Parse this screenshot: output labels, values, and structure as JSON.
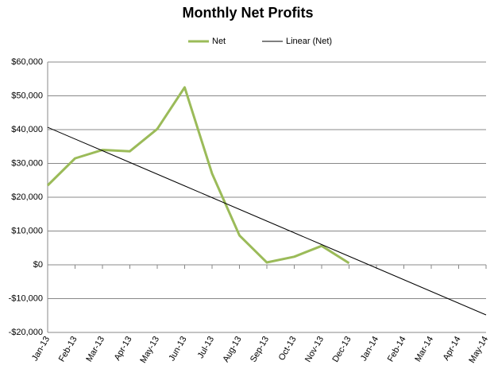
{
  "chart_data": {
    "type": "line",
    "title": "Monthly Net Profits",
    "categories": [
      "Jan-13",
      "Feb-13",
      "Mar-13",
      "Apr-13",
      "May-13",
      "Jun-13",
      "Jul-13",
      "Aug-13",
      "Sep-13",
      "Oct-13",
      "Nov-13",
      "Dec-13",
      "Jan-14",
      "Feb-14",
      "Mar-14",
      "Apr-14",
      "May-14"
    ],
    "series": [
      {
        "name": "Net",
        "color": "#9bbb59",
        "values": [
          23500,
          31500,
          34000,
          33600,
          40200,
          52500,
          27000,
          8700,
          700,
          2400,
          5600,
          500,
          null,
          null,
          null,
          null,
          null
        ]
      },
      {
        "name": "Linear (Net)",
        "color": "#000000",
        "values": [
          40700,
          37230,
          33760,
          30290,
          26820,
          23350,
          19880,
          16410,
          12940,
          9470,
          6000,
          2530,
          -940,
          -4410,
          -7880,
          -11350,
          -14820
        ]
      }
    ],
    "ylim": [
      -20000,
      60000
    ],
    "yticks": [
      {
        "value": -20000,
        "label": "-$20,000"
      },
      {
        "value": -10000,
        "label": "-$10,000"
      },
      {
        "value": 0,
        "label": "$0"
      },
      {
        "value": 10000,
        "label": "$10,000"
      },
      {
        "value": 20000,
        "label": "$20,000"
      },
      {
        "value": 30000,
        "label": "$30,000"
      },
      {
        "value": 40000,
        "label": "$40,000"
      },
      {
        "value": 50000,
        "label": "$50,000"
      },
      {
        "value": 60000,
        "label": "$60,000"
      }
    ],
    "grid": true,
    "legend": "top"
  }
}
